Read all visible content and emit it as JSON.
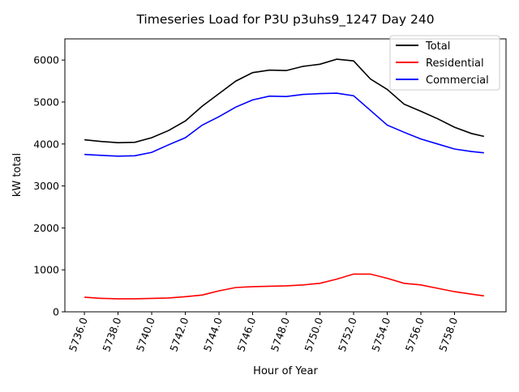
{
  "chart_data": {
    "type": "line",
    "title": "Timeseries Load for P3U p3uhs9_1247  Day 240",
    "xlabel": "Hour of Year",
    "ylabel": "kW total",
    "xlim": [
      5734.84,
      5761.06
    ],
    "ylim": [
      0,
      6505
    ],
    "xticks": [
      5736,
      5738,
      5740,
      5742,
      5744,
      5746,
      5748,
      5750,
      5752,
      5754,
      5756,
      5758
    ],
    "xtick_labels": [
      "5736.0",
      "5738.0",
      "5740.0",
      "5742.0",
      "5744.0",
      "5746.0",
      "5748.0",
      "5750.0",
      "5752.0",
      "5754.0",
      "5756.0",
      "5758.0"
    ],
    "yticks": [
      0,
      1000,
      2000,
      3000,
      4000,
      5000,
      6000
    ],
    "ytick_labels": [
      "0",
      "1000",
      "2000",
      "3000",
      "4000",
      "5000",
      "6000"
    ],
    "legend_position": "top-right",
    "grid": false,
    "x": [
      5736,
      5737,
      5738,
      5739,
      5740,
      5741,
      5742,
      5743,
      5744,
      5745,
      5746,
      5747,
      5748,
      5749,
      5750,
      5751,
      5752,
      5753,
      5754,
      5755,
      5756,
      5757,
      5758,
      5759,
      5759.75
    ],
    "series": [
      {
        "name": "Total",
        "color": "#000000",
        "values": [
          4100,
          4060,
          4030,
          4040,
          4150,
          4320,
          4550,
          4900,
          5200,
          5500,
          5700,
          5760,
          5750,
          5850,
          5900,
          6020,
          5980,
          5550,
          5300,
          4950,
          4780,
          4600,
          4400,
          4250,
          4180
        ]
      },
      {
        "name": "Residential",
        "color": "#ff0000",
        "values": [
          350,
          320,
          310,
          310,
          320,
          330,
          360,
          400,
          500,
          580,
          600,
          610,
          620,
          640,
          680,
          780,
          900,
          900,
          800,
          680,
          640,
          560,
          480,
          420,
          380
        ]
      },
      {
        "name": "Commercial",
        "color": "#0000ff",
        "values": [
          3750,
          3730,
          3710,
          3720,
          3800,
          3980,
          4150,
          4450,
          4650,
          4880,
          5050,
          5140,
          5130,
          5180,
          5200,
          5210,
          5150,
          4800,
          4450,
          4280,
          4120,
          4000,
          3880,
          3820,
          3790
        ]
      }
    ]
  }
}
